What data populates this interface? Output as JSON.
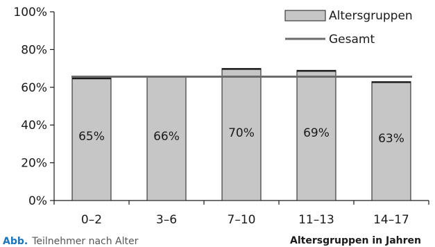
{
  "chart_data": {
    "type": "bar",
    "categories": [
      "0–2",
      "3–6",
      "7–10",
      "11–13",
      "14–17"
    ],
    "series": [
      {
        "name": "Altersgruppen",
        "values": [
          65,
          66,
          70,
          69,
          63
        ]
      }
    ],
    "reference_line": {
      "name": "Gesamt",
      "value": 66
    },
    "data_labels": [
      "65%",
      "66%",
      "70%",
      "69%",
      "63%"
    ],
    "y_ticks": [
      "0%",
      "20%",
      "40%",
      "60%",
      "80%",
      "100%"
    ],
    "ylim": [
      0,
      100
    ],
    "xlabel": "Altersgruppen in Jahren",
    "ylabel": "",
    "title": "",
    "legend_position": "top-right",
    "grid": false,
    "colors": {
      "bar_fill": "#c6c6c6",
      "bar_stroke": "#1a1a1a",
      "line": "#6b6b6b",
      "caption_accent": "#1b75bb"
    }
  },
  "caption": {
    "number": "Abb.",
    "text": "Teilnehmer nach Alter"
  }
}
